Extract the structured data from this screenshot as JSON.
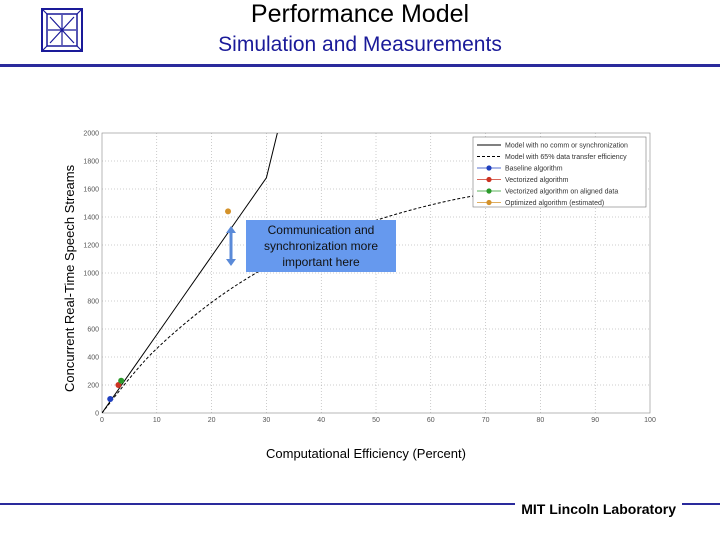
{
  "header": {
    "title": "Performance Model",
    "subtitle": "Simulation and Measurements"
  },
  "footer": {
    "label": "MIT Lincoln Laboratory"
  },
  "colors": {
    "rule": "#2a2a9c",
    "subtitle": "#1a1a99",
    "callout_bg": "#6699ee",
    "arrow": "#5a8ad8"
  },
  "callout": {
    "text": "Communication and synchronization more important here"
  },
  "chart_data": {
    "type": "line",
    "xlabel": "Computational Efficiency (Percent)",
    "ylabel": "Concurrent Real-Time Speech Streams",
    "xlim": [
      0,
      100
    ],
    "ylim": [
      0,
      2000
    ],
    "x_ticks": [
      0,
      10,
      20,
      30,
      40,
      50,
      60,
      70,
      80,
      90,
      100
    ],
    "y_ticks": [
      0,
      200,
      400,
      600,
      800,
      1000,
      1200,
      1400,
      1600,
      1800,
      2000
    ],
    "y_tick_labels": [
      "0",
      "200",
      "400",
      "600",
      "800",
      "1000",
      "1200",
      "1400",
      "1600",
      "1800",
      "2000"
    ],
    "grid": true,
    "legend_position": "top-right",
    "series": [
      {
        "name": "Model with no comm or synchronization",
        "kind": "line",
        "style": "solid",
        "color": "#000000",
        "x": [
          0,
          5,
          10,
          15,
          20,
          25,
          30,
          32
        ],
        "y": [
          0,
          280,
          560,
          840,
          1120,
          1400,
          1680,
          2000
        ]
      },
      {
        "name": "Model with 65% data transfer efficiency",
        "kind": "line",
        "style": "dashed",
        "color": "#000000",
        "x": [
          0,
          5,
          10,
          20,
          30,
          40,
          50,
          60,
          70,
          80
        ],
        "y": [
          0,
          250,
          470,
          800,
          1050,
          1240,
          1380,
          1490,
          1570,
          1600
        ]
      },
      {
        "name": "Baseline algorithm",
        "kind": "point",
        "color": "#1f3fbf",
        "x": [
          1.5
        ],
        "y": [
          100
        ]
      },
      {
        "name": "Vectorized algorithm",
        "kind": "point",
        "color": "#cc3322",
        "x": [
          3.0
        ],
        "y": [
          200
        ]
      },
      {
        "name": "Vectorized algorithm on aligned data",
        "kind": "point",
        "color": "#2a9a2a",
        "x": [
          3.5
        ],
        "y": [
          230
        ]
      },
      {
        "name": "Optimized algorithm (estimated)",
        "kind": "point",
        "color": "#d4922a",
        "x": [
          23
        ],
        "y": [
          1440
        ]
      }
    ]
  }
}
